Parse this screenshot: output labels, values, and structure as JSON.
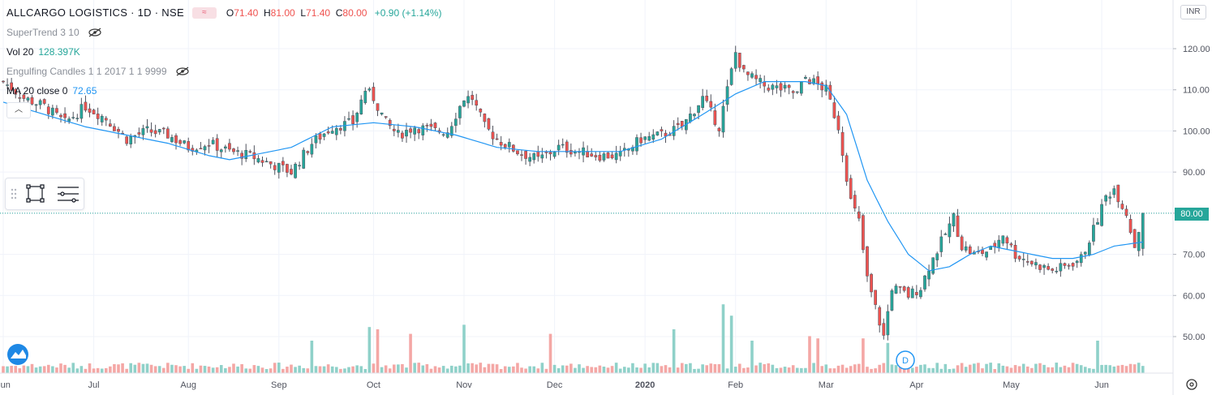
{
  "header": {
    "symbol_title": "ALLCARGO LOGISTICS · 1D · NSE",
    "ohlc": {
      "o_label": "O",
      "o": "71.40",
      "h_label": "H",
      "h": "81.00",
      "l_label": "L",
      "l": "71.40",
      "c_label": "C",
      "c": "80.00",
      "change": "+0.90 (+1.14%)"
    }
  },
  "indicators": {
    "supertrend": "SuperTrend 3 10",
    "volume_label": "Vol 20",
    "volume_value": "128.397K",
    "engulfing": "Engulfing Candles 1 1 2017 1 1 9999",
    "ma_label": "MA 20 close 0",
    "ma_value": "72.65"
  },
  "price_scale": {
    "currency": "INR",
    "last_price_label": "80.00"
  },
  "event_marker": "D",
  "colors": {
    "up": "#26a69a",
    "down": "#ef5350",
    "ma": "#2196f3",
    "vol_up": "#8fd1c9",
    "vol_down": "#f4a7a5",
    "grid": "#f0f3fa"
  },
  "chart_data": {
    "type": "candlestick",
    "title": "ALLCARGO LOGISTICS · 1D · NSE",
    "y_range": [
      45,
      125
    ],
    "y_ticks": [
      50,
      60,
      70,
      80,
      90,
      100,
      110,
      120
    ],
    "y_tick_labels": [
      "50.00",
      "60.00",
      "70.00",
      "80.00",
      "90.00",
      "100.00",
      "110.00",
      "120.00"
    ],
    "x_tick_labels": [
      "Jun",
      "Jul",
      "Aug",
      "Sep",
      "Oct",
      "Nov",
      "Dec",
      "2020",
      "Feb",
      "Mar",
      "Apr",
      "May",
      "Jun"
    ],
    "x_tick_days": [
      0,
      22,
      45,
      67,
      90,
      112,
      134,
      156,
      178,
      200,
      222,
      245,
      267
    ],
    "total_days": 280,
    "last_price": 80,
    "close_anchors": [
      [
        0,
        112
      ],
      [
        5,
        108
      ],
      [
        10,
        106
      ],
      [
        15,
        102
      ],
      [
        20,
        106
      ],
      [
        25,
        103
      ],
      [
        30,
        98
      ],
      [
        35,
        100
      ],
      [
        40,
        99
      ],
      [
        45,
        96
      ],
      [
        50,
        97
      ],
      [
        55,
        95
      ],
      [
        60,
        94
      ],
      [
        65,
        92
      ],
      [
        70,
        90
      ],
      [
        75,
        97
      ],
      [
        80,
        101
      ],
      [
        85,
        102
      ],
      [
        88,
        110
      ],
      [
        90,
        108
      ],
      [
        93,
        102
      ],
      [
        96,
        99
      ],
      [
        100,
        101
      ],
      [
        105,
        100
      ],
      [
        108,
        100
      ],
      [
        112,
        108
      ],
      [
        114,
        108
      ],
      [
        117,
        101
      ],
      [
        120,
        98
      ],
      [
        125,
        95
      ],
      [
        130,
        93
      ],
      [
        135,
        96
      ],
      [
        140,
        95
      ],
      [
        145,
        94
      ],
      [
        150,
        94
      ],
      [
        155,
        98
      ],
      [
        160,
        99
      ],
      [
        165,
        101
      ],
      [
        170,
        108
      ],
      [
        174,
        101
      ],
      [
        178,
        119
      ],
      [
        180,
        114
      ],
      [
        185,
        111
      ],
      [
        190,
        110
      ],
      [
        193,
        109
      ],
      [
        195,
        113
      ],
      [
        200,
        110
      ],
      [
        203,
        101
      ],
      [
        206,
        83
      ],
      [
        208,
        78
      ],
      [
        210,
        64
      ],
      [
        212,
        57
      ],
      [
        214,
        50
      ],
      [
        216,
        62
      ],
      [
        220,
        60
      ],
      [
        223,
        62
      ],
      [
        225,
        67
      ],
      [
        228,
        73
      ],
      [
        231,
        79
      ],
      [
        233,
        72
      ],
      [
        236,
        70
      ],
      [
        240,
        71
      ],
      [
        243,
        75
      ],
      [
        246,
        70
      ],
      [
        250,
        68
      ],
      [
        255,
        66
      ],
      [
        258,
        67
      ],
      [
        262,
        69
      ],
      [
        265,
        76
      ],
      [
        268,
        84
      ],
      [
        270,
        86
      ],
      [
        273,
        80
      ],
      [
        275,
        72
      ],
      [
        277,
        80
      ]
    ],
    "ma20_anchors": [
      [
        0,
        107
      ],
      [
        10,
        104
      ],
      [
        20,
        101
      ],
      [
        30,
        99
      ],
      [
        40,
        97
      ],
      [
        50,
        94
      ],
      [
        55,
        93
      ],
      [
        60,
        94
      ],
      [
        70,
        96
      ],
      [
        80,
        101
      ],
      [
        90,
        102
      ],
      [
        100,
        101
      ],
      [
        110,
        99
      ],
      [
        120,
        96
      ],
      [
        130,
        95
      ],
      [
        140,
        95
      ],
      [
        150,
        95
      ],
      [
        160,
        98
      ],
      [
        170,
        104
      ],
      [
        178,
        109
      ],
      [
        185,
        112
      ],
      [
        195,
        112
      ],
      [
        200,
        111
      ],
      [
        205,
        104
      ],
      [
        210,
        88
      ],
      [
        215,
        78
      ],
      [
        220,
        70
      ],
      [
        225,
        66
      ],
      [
        230,
        67
      ],
      [
        235,
        70
      ],
      [
        240,
        72
      ],
      [
        245,
        71
      ],
      [
        250,
        70
      ],
      [
        255,
        69
      ],
      [
        260,
        69
      ],
      [
        265,
        70
      ],
      [
        270,
        72
      ],
      [
        277,
        73
      ]
    ],
    "ma_period": 20,
    "volume_spikes": [
      [
        75,
        1.0
      ],
      [
        89,
        1.6
      ],
      [
        91,
        1.5
      ],
      [
        99,
        1.3
      ],
      [
        112,
        1.7
      ],
      [
        133,
        1.3
      ],
      [
        163,
        1.5
      ],
      [
        175,
        2.6
      ],
      [
        177,
        2.1
      ],
      [
        182,
        1.0
      ],
      [
        196,
        1.2
      ],
      [
        198,
        1.1
      ],
      [
        209,
        1.1
      ],
      [
        215,
        0.9
      ],
      [
        266,
        1.0
      ]
    ]
  }
}
